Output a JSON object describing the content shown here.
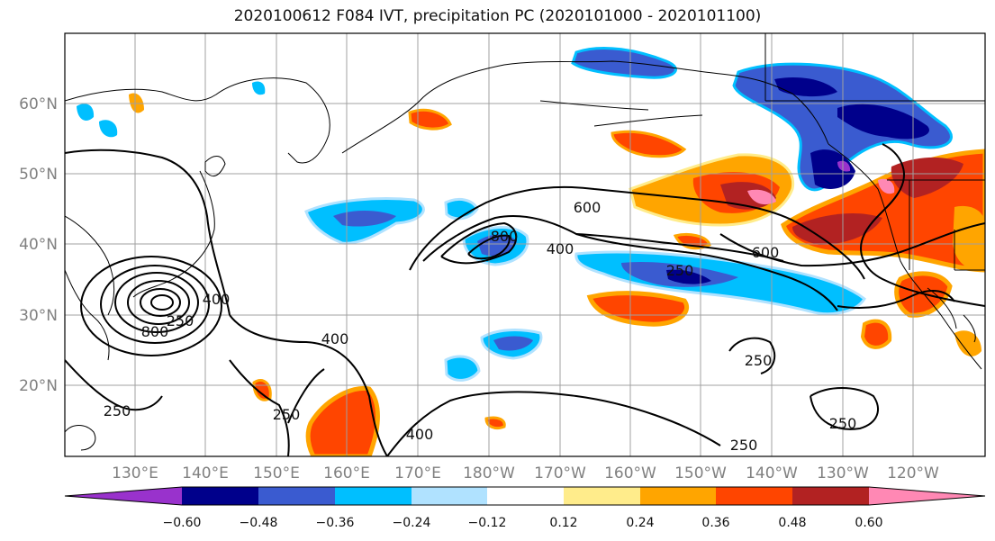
{
  "title": "2020100612 F084 IVT, precipitation PC (2020101000 - 2020101100)",
  "map": {
    "lat_ticks": [
      "60°N",
      "50°N",
      "40°N",
      "30°N",
      "20°N"
    ],
    "lon_ticks": [
      "130°E",
      "140°E",
      "150°E",
      "160°E",
      "170°E",
      "180°W",
      "170°W",
      "160°W",
      "150°W",
      "140°W",
      "130°W",
      "120°W"
    ],
    "contour_labels": [
      "600",
      "800",
      "400",
      "250",
      "600",
      "800",
      "400",
      "400",
      "250",
      "250",
      "400",
      "250",
      "250",
      "250",
      "250"
    ]
  },
  "colorbar": {
    "ticks": [
      "−0.60",
      "−0.48",
      "−0.36",
      "−0.24",
      "−0.12",
      "0.12",
      "0.24",
      "0.36",
      "0.48",
      "0.60"
    ],
    "colors": [
      "#9932cc",
      "#00008b",
      "#3a5bd0",
      "#00bfff",
      "#b0e2ff",
      "#ffffff",
      "#ffec8b",
      "#ffa500",
      "#ff4500",
      "#b22222",
      "#ff88b4"
    ]
  }
}
